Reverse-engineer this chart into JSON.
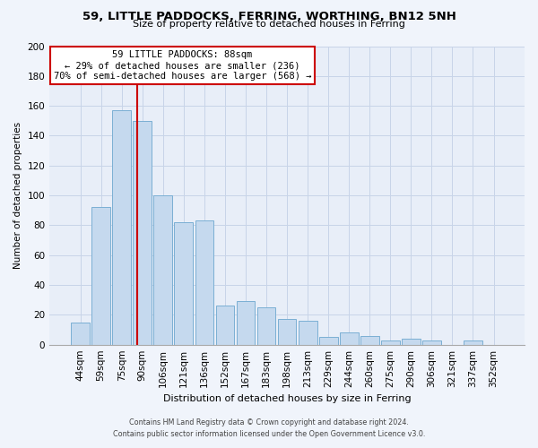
{
  "title": "59, LITTLE PADDOCKS, FERRING, WORTHING, BN12 5NH",
  "subtitle": "Size of property relative to detached houses in Ferring",
  "xlabel": "Distribution of detached houses by size in Ferring",
  "ylabel": "Number of detached properties",
  "bar_labels": [
    "44sqm",
    "59sqm",
    "75sqm",
    "90sqm",
    "106sqm",
    "121sqm",
    "136sqm",
    "152sqm",
    "167sqm",
    "183sqm",
    "198sqm",
    "213sqm",
    "229sqm",
    "244sqm",
    "260sqm",
    "275sqm",
    "290sqm",
    "306sqm",
    "321sqm",
    "337sqm",
    "352sqm"
  ],
  "bar_values": [
    15,
    92,
    157,
    150,
    100,
    82,
    83,
    26,
    29,
    25,
    17,
    16,
    5,
    8,
    6,
    3,
    4,
    3,
    0,
    3,
    0
  ],
  "bar_color": "#c5d9ee",
  "bar_edge_color": "#7bafd4",
  "vline_color": "#cc0000",
  "annotation_text": "59 LITTLE PADDOCKS: 88sqm\n← 29% of detached houses are smaller (236)\n70% of semi-detached houses are larger (568) →",
  "annotation_box_edgecolor": "#cc0000",
  "ylim": [
    0,
    200
  ],
  "yticks": [
    0,
    20,
    40,
    60,
    80,
    100,
    120,
    140,
    160,
    180,
    200
  ],
  "footer1": "Contains HM Land Registry data © Crown copyright and database right 2024.",
  "footer2": "Contains public sector information licensed under the Open Government Licence v3.0.",
  "bg_color": "#f0f4fb",
  "plot_bg_color": "#e8eef8",
  "grid_color": "#c8d4e8"
}
